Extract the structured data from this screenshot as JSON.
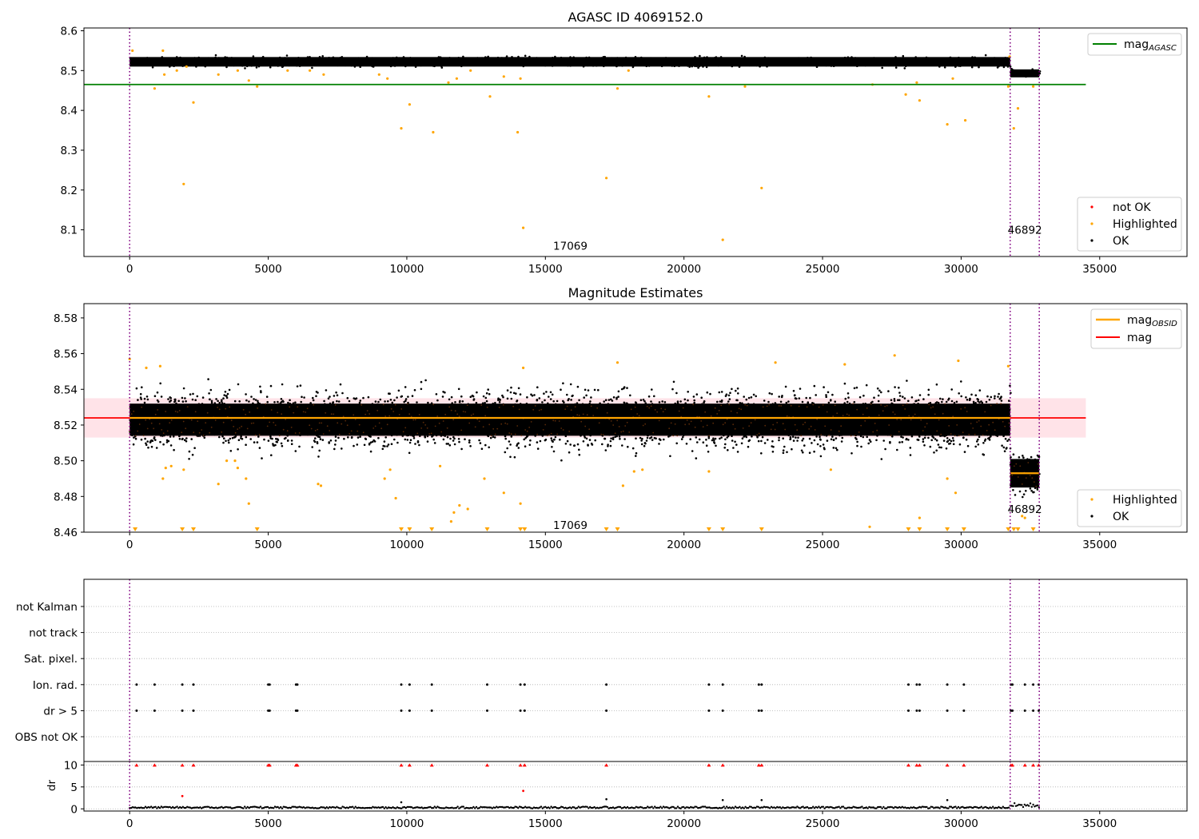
{
  "colors": {
    "ok": "#000000",
    "highlighted": "#ffa500",
    "not_ok": "#ff0000",
    "mag_agasc": "#008000",
    "mag_obsid": "#ffa500",
    "mag": "#ff0000",
    "band": "#ffc0cb",
    "obs_boundary": "#800080",
    "grid": "#b0b0b0"
  },
  "chart_data": [
    {
      "id": "top",
      "type": "scatter",
      "title": "AGASC ID 4069152.0",
      "xlabel": "",
      "ylabel": "",
      "xlim": [
        -1650,
        38150
      ],
      "ylim": [
        8.033,
        8.607
      ],
      "xticks": [
        0,
        5000,
        10000,
        15000,
        20000,
        25000,
        30000,
        35000
      ],
      "xtick_labels": [
        "0",
        "5000",
        "10000",
        "15000",
        "20000",
        "25000",
        "30000",
        "35000"
      ],
      "yticks": [
        8.1,
        8.2,
        8.3,
        8.4,
        8.5,
        8.6
      ],
      "ytick_labels": [
        "8.1",
        "8.2",
        "8.3",
        "8.4",
        "8.5",
        "8.6"
      ],
      "grid": false,
      "obs_boundaries": [
        0,
        31770,
        32820
      ],
      "obsid_annotations": [
        {
          "text": "17069",
          "x": 15900,
          "y": 8.06
        },
        {
          "text": "46892",
          "x": 32300,
          "y": 8.1
        }
      ],
      "reference_lines": [
        {
          "name": "mag_AGASC",
          "legend_main": "mag",
          "legend_sub": "AGASC",
          "y": 8.465,
          "x": [
            -1650,
            34500
          ]
        }
      ],
      "ok_trend": [
        {
          "x_from": 0,
          "x_to": 31770,
          "center": 8.522,
          "half_width": 0.012,
          "spread": 0.018
        },
        {
          "x_from": 31770,
          "x_to": 32820,
          "center": 8.493,
          "half_width": 0.01,
          "spread": 0.015
        }
      ],
      "highlighted_points": [
        [
          100,
          8.55
        ],
        [
          900,
          8.455
        ],
        [
          1200,
          8.55
        ],
        [
          1250,
          8.49
        ],
        [
          1700,
          8.5
        ],
        [
          1950,
          8.215
        ],
        [
          2050,
          8.51
        ],
        [
          2300,
          8.42
        ],
        [
          3200,
          8.49
        ],
        [
          3900,
          8.5
        ],
        [
          4300,
          8.475
        ],
        [
          4600,
          8.46
        ],
        [
          5700,
          8.5
        ],
        [
          6500,
          8.5
        ],
        [
          7000,
          8.49
        ],
        [
          9000,
          8.49
        ],
        [
          9300,
          8.48
        ],
        [
          9800,
          8.355
        ],
        [
          10100,
          8.415
        ],
        [
          10950,
          8.345
        ],
        [
          11500,
          8.47
        ],
        [
          11800,
          8.48
        ],
        [
          12300,
          8.5
        ],
        [
          13000,
          8.435
        ],
        [
          13500,
          8.485
        ],
        [
          14000,
          8.345
        ],
        [
          14100,
          8.48
        ],
        [
          14200,
          8.105
        ],
        [
          17200,
          8.23
        ],
        [
          17600,
          8.455
        ],
        [
          18000,
          8.5
        ],
        [
          20900,
          8.435
        ],
        [
          21400,
          8.075
        ],
        [
          22200,
          8.46
        ],
        [
          22800,
          8.205
        ],
        [
          26800,
          8.465
        ],
        [
          28000,
          8.44
        ],
        [
          28400,
          8.47
        ],
        [
          28500,
          8.425
        ],
        [
          29500,
          8.365
        ],
        [
          29700,
          8.48
        ],
        [
          30150,
          8.375
        ],
        [
          31700,
          8.46
        ],
        [
          31900,
          8.355
        ],
        [
          32050,
          8.405
        ],
        [
          32600,
          8.46
        ],
        [
          31750,
          8.535
        ]
      ],
      "not_ok_points": [],
      "legends": [
        {
          "position": "upper-right",
          "entries": [
            "mag_AGASC"
          ]
        },
        {
          "position": "lower-right",
          "entries": [
            "not OK",
            "Highlighted",
            "OK"
          ]
        }
      ]
    },
    {
      "id": "middle",
      "type": "scatter",
      "title": "Magnitude Estimates",
      "xlabel": "",
      "ylabel": "",
      "xlim": [
        -1650,
        38150
      ],
      "ylim": [
        8.46,
        8.588
      ],
      "xticks": [
        0,
        5000,
        10000,
        15000,
        20000,
        25000,
        30000,
        35000
      ],
      "xtick_labels": [
        "0",
        "5000",
        "10000",
        "15000",
        "20000",
        "25000",
        "30000",
        "35000"
      ],
      "yticks": [
        8.46,
        8.48,
        8.5,
        8.52,
        8.54,
        8.56,
        8.58
      ],
      "ytick_labels": [
        "8.46",
        "8.48",
        "8.50",
        "8.52",
        "8.54",
        "8.56",
        "8.58"
      ],
      "grid": false,
      "obs_boundaries": [
        0,
        31770,
        32820
      ],
      "obsid_annotations": [
        {
          "text": "17069",
          "x": 15900,
          "y": 8.464
        },
        {
          "text": "46892",
          "x": 32300,
          "y": 8.473
        }
      ],
      "band": {
        "x": [
          -1650,
          34500
        ],
        "y": [
          8.513,
          8.535
        ]
      },
      "reference_lines": [
        {
          "name": "mag",
          "legend_main": "mag",
          "legend_sub": "",
          "y": 8.524,
          "x": [
            -1650,
            34500
          ]
        },
        {
          "name": "mag_OBSID",
          "legend_main": "mag",
          "legend_sub": "OBSID",
          "segments": [
            {
              "x": [
                0,
                31770
              ],
              "y": 8.524
            },
            {
              "x": [
                31770,
                32820
              ],
              "y": 8.493
            }
          ]
        }
      ],
      "ok_trend": [
        {
          "x_from": 0,
          "x_to": 31770,
          "center": 8.523,
          "half_width": 0.009,
          "spread": 0.024
        },
        {
          "x_from": 31770,
          "x_to": 32820,
          "center": 8.493,
          "half_width": 0.008,
          "spread": 0.018
        }
      ],
      "highlighted_points": [
        [
          0,
          8.557
        ],
        [
          600,
          8.552
        ],
        [
          1100,
          8.553
        ],
        [
          1200,
          8.49
        ],
        [
          1300,
          8.496
        ],
        [
          1500,
          8.497
        ],
        [
          1950,
          8.495
        ],
        [
          3200,
          8.487
        ],
        [
          3500,
          8.5
        ],
        [
          3800,
          8.5
        ],
        [
          3900,
          8.496
        ],
        [
          4200,
          8.49
        ],
        [
          4300,
          8.476
        ],
        [
          6800,
          8.487
        ],
        [
          6900,
          8.486
        ],
        [
          9200,
          8.49
        ],
        [
          9400,
          8.495
        ],
        [
          9600,
          8.479
        ],
        [
          11200,
          8.497
        ],
        [
          11600,
          8.466
        ],
        [
          11700,
          8.471
        ],
        [
          11900,
          8.475
        ],
        [
          12200,
          8.473
        ],
        [
          12800,
          8.49
        ],
        [
          13500,
          8.482
        ],
        [
          14100,
          8.476
        ],
        [
          14200,
          8.552
        ],
        [
          17600,
          8.555
        ],
        [
          17800,
          8.486
        ],
        [
          18200,
          8.494
        ],
        [
          18500,
          8.495
        ],
        [
          20900,
          8.494
        ],
        [
          23300,
          8.555
        ],
        [
          25300,
          8.495
        ],
        [
          25800,
          8.554
        ],
        [
          26700,
          8.463
        ],
        [
          27600,
          8.559
        ],
        [
          28500,
          8.468
        ],
        [
          29500,
          8.49
        ],
        [
          29800,
          8.482
        ],
        [
          29900,
          8.556
        ],
        [
          31700,
          8.553
        ],
        [
          32200,
          8.469
        ],
        [
          32300,
          8.468
        ]
      ],
      "clipped_below": [
        200,
        1900,
        2300,
        4600,
        9800,
        10100,
        10900,
        12900,
        14100,
        14250,
        17200,
        17600,
        20900,
        21400,
        22800,
        28100,
        28500,
        29500,
        30100,
        31700,
        31900,
        32050,
        32600
      ],
      "legends": [
        {
          "position": "upper-right",
          "entries": [
            "mag_OBSID",
            "mag"
          ]
        },
        {
          "position": "lower-right",
          "entries": [
            "Highlighted",
            "OK"
          ]
        }
      ]
    },
    {
      "id": "flags",
      "type": "scatter",
      "title": "",
      "xlabel": "",
      "ylabel": "",
      "xlim": [
        -1650,
        38150
      ],
      "category_labels": [
        "not Kalman",
        "not track",
        "Sat. pixel.",
        "Ion. rad.",
        "dr > 5",
        "OBS not OK"
      ],
      "grid": true,
      "obs_boundaries": [
        0,
        31770,
        32820
      ],
      "flag_points": {
        "Ion. rad.": [
          250,
          900,
          1900,
          2300,
          5000,
          5050,
          6000,
          6050,
          9800,
          10100,
          10900,
          12900,
          14100,
          14250,
          17200,
          20900,
          21400,
          22700,
          22800,
          28100,
          28400,
          28500,
          29500,
          30100,
          31800,
          31850,
          32300,
          32600,
          32800
        ],
        "dr > 5": [
          250,
          900,
          1900,
          2300,
          5000,
          5050,
          6000,
          6050,
          9800,
          10100,
          10900,
          12900,
          14100,
          14250,
          17200,
          20900,
          21400,
          22700,
          22800,
          28100,
          28400,
          28500,
          29500,
          30100,
          31800,
          31850,
          32300,
          32600,
          32800
        ]
      }
    },
    {
      "id": "dr",
      "type": "scatter",
      "title": "",
      "xlabel": "",
      "ylabel": "dr",
      "xlim": [
        -1650,
        38150
      ],
      "ylim": [
        -0.5,
        10.8
      ],
      "yticks": [
        0,
        5,
        10
      ],
      "ytick_labels": [
        "0",
        "5",
        "10"
      ],
      "xticks": [
        0,
        5000,
        10000,
        15000,
        20000,
        25000,
        30000,
        35000
      ],
      "xtick_labels": [
        "0",
        "5000",
        "10000",
        "15000",
        "20000",
        "25000",
        "30000",
        "35000"
      ],
      "grid": true,
      "obs_boundaries": [
        0,
        31770,
        32820
      ],
      "ok_trend": [
        {
          "x_from": 0,
          "x_to": 31770,
          "center": 0.3,
          "half_width": 0.15,
          "spread": 0.2
        },
        {
          "x_from": 31770,
          "x_to": 32820,
          "center": 0.8,
          "half_width": 0.4,
          "spread": 0.5
        }
      ],
      "ok_outliers": [
        [
          9800,
          1.5
        ],
        [
          17200,
          2.2
        ],
        [
          21400,
          2.0
        ],
        [
          22800,
          2.0
        ],
        [
          29500,
          2.0
        ]
      ],
      "not_ok_points": [
        [
          1900,
          2.9
        ],
        [
          14200,
          4.1
        ]
      ],
      "clipped_above": [
        250,
        900,
        1900,
        2300,
        5000,
        5050,
        6000,
        6050,
        9800,
        10100,
        10900,
        12900,
        14100,
        14250,
        17200,
        20900,
        21400,
        22700,
        22800,
        28100,
        28400,
        28500,
        29500,
        30100,
        31800,
        31850,
        32300,
        32600,
        32800
      ]
    }
  ],
  "legend_labels": {
    "not_ok": "not OK",
    "highlighted": "Highlighted",
    "ok": "OK",
    "mag": "mag",
    "agasc_sub": "AGASC",
    "obsid_sub": "OBSID"
  }
}
